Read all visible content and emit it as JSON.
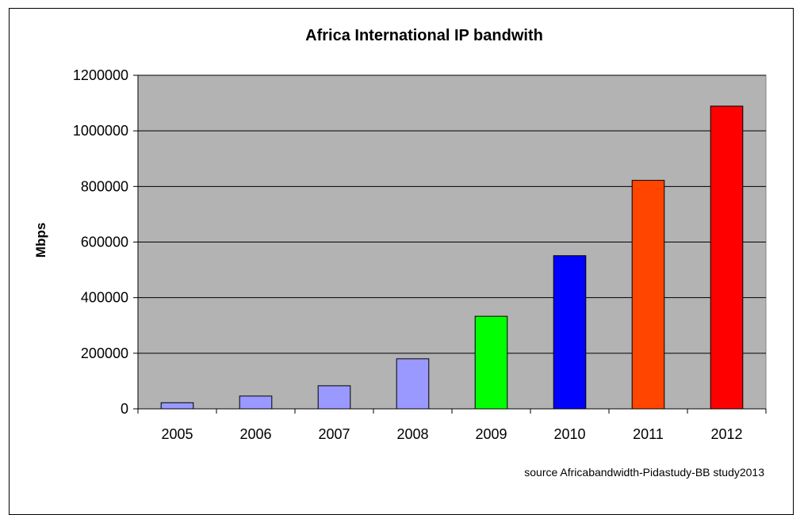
{
  "chart_data": {
    "type": "bar",
    "title": "Africa International IP bandwith",
    "xlabel": "",
    "ylabel": "Mbps",
    "categories": [
      "2005",
      "2006",
      "2007",
      "2008",
      "2009",
      "2010",
      "2011",
      "2012"
    ],
    "values": [
      22000,
      46000,
      83000,
      180000,
      333000,
      551000,
      822000,
      1089000
    ],
    "bar_colors": [
      "#9999ff",
      "#9999ff",
      "#9999ff",
      "#9999ff",
      "#00ff00",
      "#0000ff",
      "#ff4500",
      "#ff0000"
    ],
    "ylim": [
      0,
      1200000
    ],
    "yticks": [
      "0",
      "200000",
      "400000",
      "600000",
      "800000",
      "1000000",
      "1200000"
    ],
    "ytick_values": [
      0,
      200000,
      400000,
      600000,
      800000,
      1000000,
      1200000
    ],
    "plot_background": "#b3b3b3",
    "grid": "horizontal",
    "legend": "none",
    "annotation": "source Africabandwidth-Pidastudy-BB study2013"
  }
}
